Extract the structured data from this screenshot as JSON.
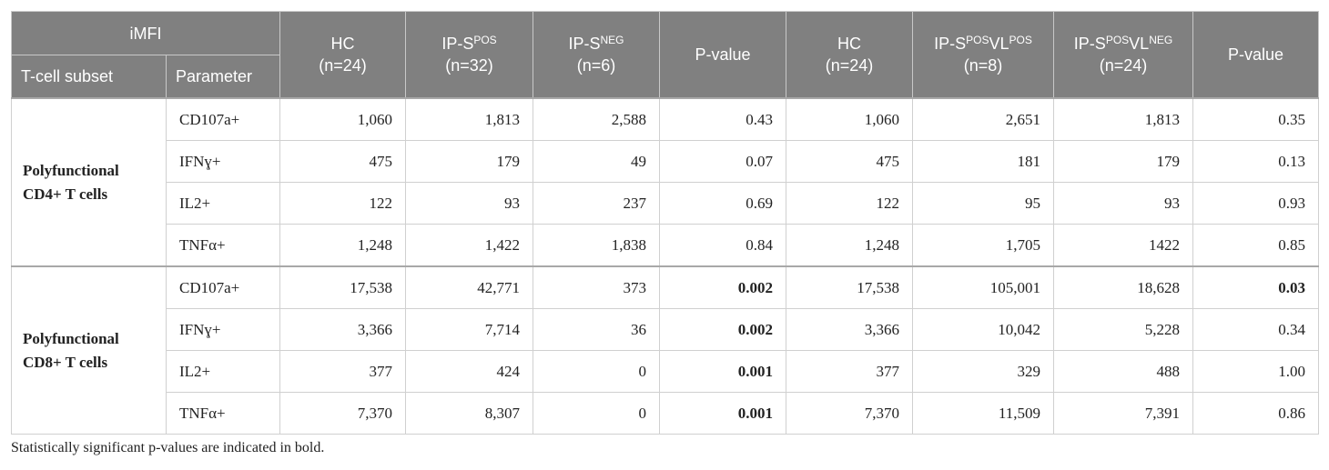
{
  "table": {
    "corner": "iMFI",
    "subset_header": "T-cell subset",
    "parameter_header": "Parameter",
    "columns": [
      {
        "label": [
          {
            "text": "HC"
          }
        ],
        "n": "(n=24)"
      },
      {
        "label": [
          {
            "text": "IP-S"
          },
          {
            "sup": "POS"
          }
        ],
        "n": "(n=32)"
      },
      {
        "label": [
          {
            "text": "IP-S"
          },
          {
            "sup": "NEG"
          }
        ],
        "n": "(n=6)"
      },
      {
        "label": [
          {
            "text": "P-value"
          }
        ]
      },
      {
        "label": [
          {
            "text": "HC"
          }
        ],
        "n": "(n=24)"
      },
      {
        "label": [
          {
            "text": "IP-S"
          },
          {
            "sup": "POS"
          },
          {
            "text": "VL"
          },
          {
            "sup": "POS"
          }
        ],
        "n": "(n=8)"
      },
      {
        "label": [
          {
            "text": "IP-S"
          },
          {
            "sup": "POS"
          },
          {
            "text": "VL"
          },
          {
            "sup": "NEG"
          }
        ],
        "n": "(n=24)"
      },
      {
        "label": [
          {
            "text": "P-value"
          }
        ]
      }
    ],
    "groups": [
      {
        "subset": "Polyfunctional CD4+ T cells",
        "rows": [
          {
            "parameter": "CD107a+",
            "values": [
              "1,060",
              "1,813",
              "2,588",
              "0.43",
              "1,060",
              "2,651",
              "1,813",
              "0.35"
            ],
            "bold": []
          },
          {
            "parameter": "IFNɣ+",
            "values": [
              "475",
              "179",
              "49",
              "0.07",
              "475",
              "181",
              "179",
              "0.13"
            ],
            "bold": []
          },
          {
            "parameter": "IL2+",
            "values": [
              "122",
              "93",
              "237",
              "0.69",
              "122",
              "95",
              "93",
              "0.93"
            ],
            "bold": []
          },
          {
            "parameter": "TNFα+",
            "values": [
              "1,248",
              "1,422",
              "1,838",
              "0.84",
              "1,248",
              "1,705",
              "1422",
              "0.85"
            ],
            "bold": []
          }
        ]
      },
      {
        "subset": "Polyfunctional CD8+ T cells",
        "rows": [
          {
            "parameter": "CD107a+",
            "values": [
              "17,538",
              "42,771",
              "373",
              "0.002",
              "17,538",
              "105,001",
              "18,628",
              "0.03"
            ],
            "bold": [
              3,
              7
            ]
          },
          {
            "parameter": "IFNɣ+",
            "values": [
              "3,366",
              "7,714",
              "36",
              "0.002",
              "3,366",
              "10,042",
              "5,228",
              "0.34"
            ],
            "bold": [
              3
            ]
          },
          {
            "parameter": "IL2+",
            "values": [
              "377",
              "424",
              "0",
              "0.001",
              "377",
              "329",
              "488",
              "1.00"
            ],
            "bold": [
              3
            ]
          },
          {
            "parameter": "TNFα+",
            "values": [
              "7,370",
              "8,307",
              "0",
              "0.001",
              "7,370",
              "11,509",
              "7,391",
              "0.86"
            ],
            "bold": [
              3
            ]
          }
        ]
      }
    ]
  },
  "footnote": "Statistically significant p-values are indicated in bold."
}
